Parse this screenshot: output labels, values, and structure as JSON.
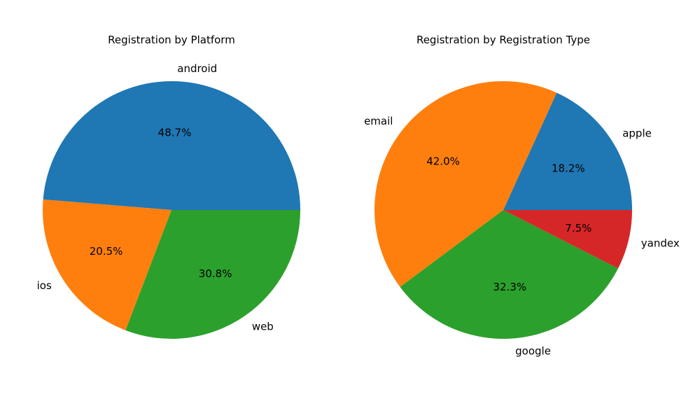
{
  "chart_data": [
    {
      "type": "pie",
      "title": "Registration by Platform",
      "slices": [
        {
          "label": "android",
          "value": 48.7,
          "pct_label": "48.7%",
          "color": "#1f77b4"
        },
        {
          "label": "ios",
          "value": 20.5,
          "pct_label": "20.5%",
          "color": "#ff7f0e"
        },
        {
          "label": "web",
          "value": 30.8,
          "pct_label": "30.8%",
          "color": "#2ca02c"
        }
      ],
      "start_angle_deg": 0,
      "direction": "counterclockwise"
    },
    {
      "type": "pie",
      "title": "Registration by Registration Type",
      "slices": [
        {
          "label": "apple",
          "value": 18.2,
          "pct_label": "18.2%",
          "color": "#1f77b4"
        },
        {
          "label": "email",
          "value": 42.0,
          "pct_label": "42.0%",
          "color": "#ff7f0e"
        },
        {
          "label": "google",
          "value": 32.3,
          "pct_label": "32.3%",
          "color": "#2ca02c"
        },
        {
          "label": "yandex",
          "value": 7.5,
          "pct_label": "7.5%",
          "color": "#d62728"
        }
      ],
      "start_angle_deg": 0,
      "direction": "counterclockwise"
    }
  ]
}
